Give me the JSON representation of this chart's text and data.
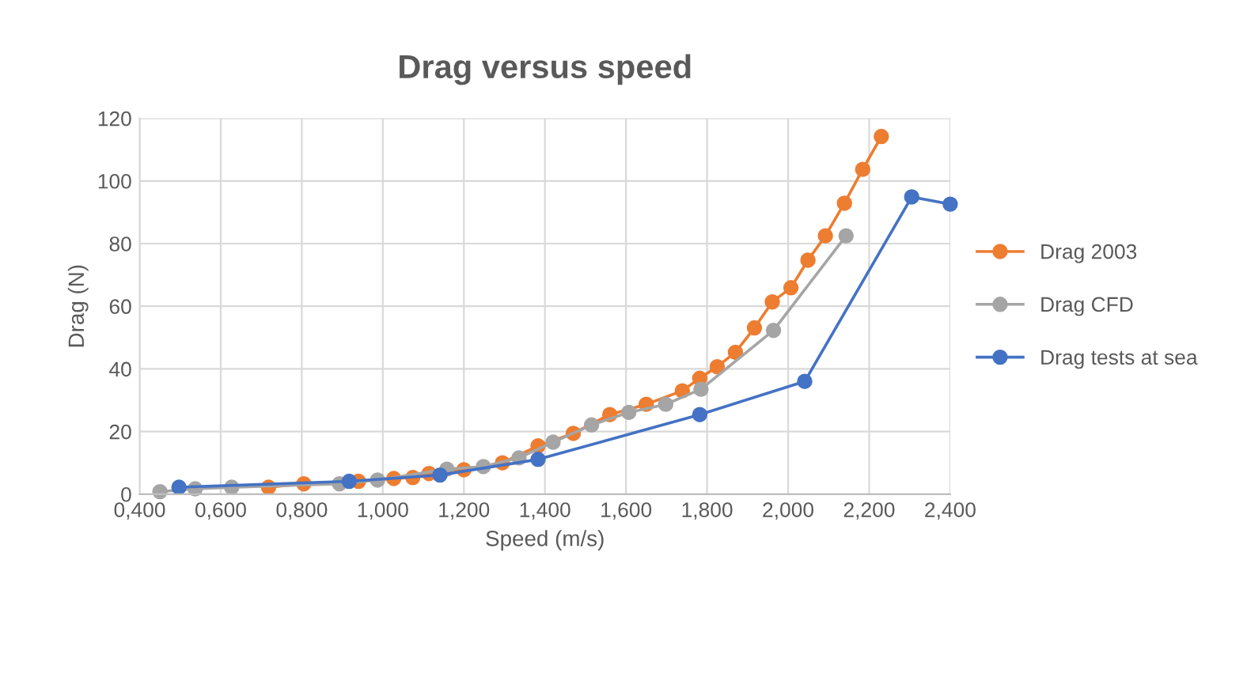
{
  "chart_data": {
    "type": "line",
    "title": "Drag versus speed",
    "xlabel": "Speed (m/s)",
    "ylabel": "Drag (N)",
    "xlim": [
      0.4,
      2.4
    ],
    "xticks": [
      {
        "value": 0.4,
        "label": "0,400"
      },
      {
        "value": 0.6,
        "label": "0,600"
      },
      {
        "value": 0.8,
        "label": "0,800"
      },
      {
        "value": 1.0,
        "label": "1,000"
      },
      {
        "value": 1.2,
        "label": "1,200"
      },
      {
        "value": 1.4,
        "label": "1,400"
      },
      {
        "value": 1.6,
        "label": "1,600"
      },
      {
        "value": 1.8,
        "label": "1,800"
      },
      {
        "value": 2.0,
        "label": "2,000"
      },
      {
        "value": 2.2,
        "label": "2,200"
      },
      {
        "value": 2.4,
        "label": "2,400"
      }
    ],
    "ylim": [
      0,
      120
    ],
    "yticks": [
      0,
      20,
      40,
      60,
      80,
      100,
      120
    ],
    "grid": true,
    "legend": "right",
    "marker": "circle",
    "line_style": "solid",
    "series": [
      {
        "name": "Drag 2003",
        "color": "#ed7d31",
        "x": [
          0.718,
          0.805,
          0.94,
          1.027,
          1.074,
          1.114,
          1.2,
          1.295,
          1.383,
          1.47,
          1.56,
          1.65,
          1.739,
          1.782,
          1.825,
          1.87,
          1.917,
          1.961,
          2.007,
          2.049,
          2.092,
          2.139,
          2.184,
          2.23
        ],
        "values": [
          2.2,
          3.3,
          4.1,
          5,
          5.3,
          6.6,
          7.8,
          10,
          15.4,
          19.4,
          25.4,
          28.7,
          33,
          37,
          40.7,
          45.3,
          53.1,
          61.4,
          65.9,
          74.7,
          82.5,
          92.9,
          103.7,
          114.2
        ]
      },
      {
        "name": "Drag CFD",
        "color": "#a5a5a5",
        "x": [
          0.45,
          0.537,
          0.627,
          0.893,
          0.987,
          1.158,
          1.248,
          1.336,
          1.42,
          1.515,
          1.607,
          1.698,
          1.785,
          1.964,
          2.143
        ],
        "values": [
          0.8,
          1.7,
          2.2,
          3.3,
          4.5,
          8,
          8.8,
          11.6,
          16.6,
          22.1,
          26.1,
          28.7,
          33.5,
          52.3,
          82.5
        ]
      },
      {
        "name": "Drag tests at sea",
        "color": "#4472c4",
        "x": [
          0.497,
          0.917,
          1.141,
          1.383,
          1.782,
          2.041,
          2.305,
          2.4
        ],
        "values": [
          2.2,
          4.1,
          6.1,
          11.1,
          25.4,
          36,
          94.9,
          92.6
        ]
      }
    ]
  }
}
